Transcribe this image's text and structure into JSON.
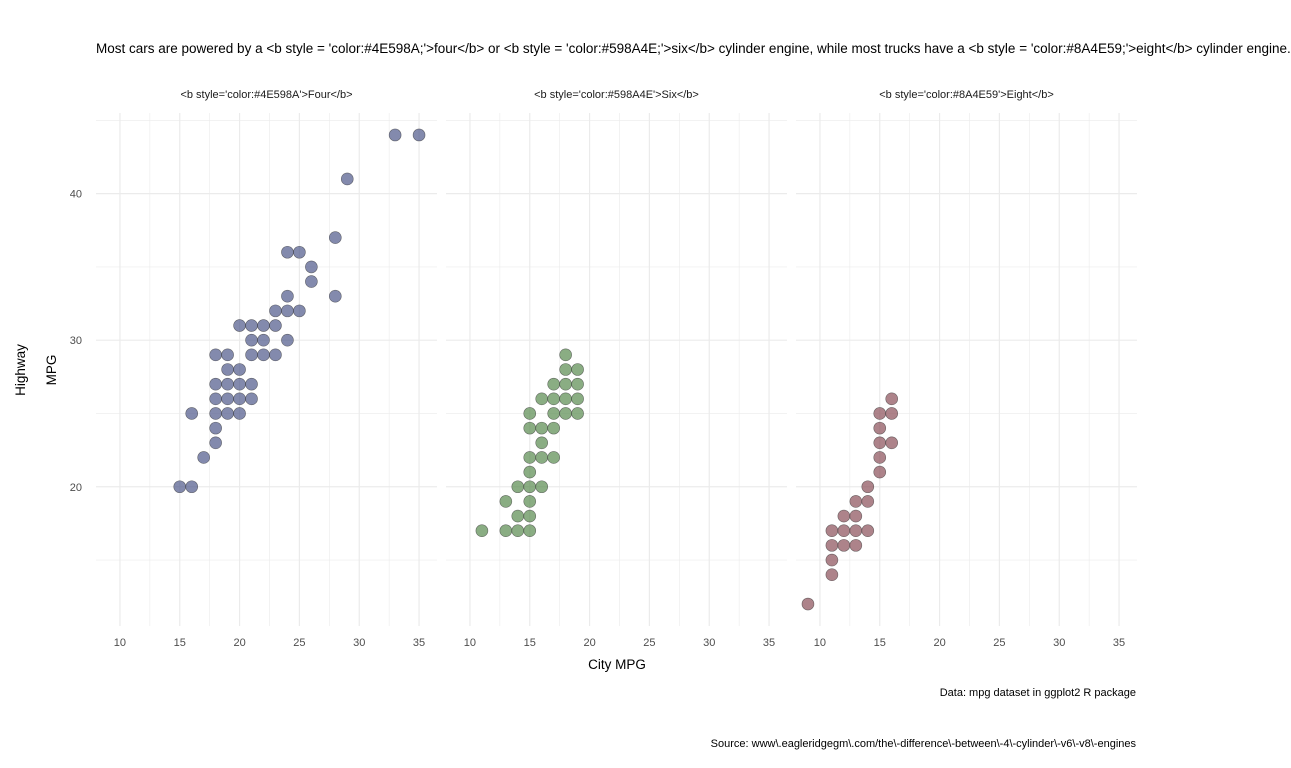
{
  "title": "Most cars are powered by a <b style = 'color:#4E598A;'>four</b> or <b style = 'color:#598A4E;'>six</b> cylinder engine, while most trucks have a <b style = 'color:#8A4E59;'>eight</b> cylinder engine.",
  "caption": {
    "data_note": "Data: mpg dataset in ggplot2 R package",
    "source": "Source: www\\.eagleridgegm\\.com/the\\-difference\\-between\\-4\\-cylinder\\-v6\\-v8\\-engines"
  },
  "colors": {
    "four": "#4E598A",
    "six": "#598A4E",
    "eight": "#8A4E59",
    "grid": "#ebebeb"
  },
  "chart_data": {
    "type": "scatter",
    "xlabel": "City MPG",
    "ylabel_lines": [
      "Highway",
      "MPG"
    ],
    "xlim": [
      8,
      36.5
    ],
    "ylim": [
      10.5,
      45.5
    ],
    "xticks": [
      10,
      15,
      20,
      25,
      30,
      35
    ],
    "yticks": [
      20,
      30,
      40
    ],
    "grid": true,
    "facets": [
      {
        "strip": "<b style='color:#4E598A'>Four</b>",
        "color": "#4E598A",
        "points": [
          [
            15,
            20
          ],
          [
            16,
            20
          ],
          [
            16,
            25
          ],
          [
            17,
            22
          ],
          [
            18,
            23
          ],
          [
            18,
            24
          ],
          [
            18,
            25
          ],
          [
            18,
            26
          ],
          [
            18,
            27
          ],
          [
            18,
            29
          ],
          [
            19,
            25
          ],
          [
            19,
            26
          ],
          [
            19,
            27
          ],
          [
            19,
            28
          ],
          [
            19,
            29
          ],
          [
            20,
            25
          ],
          [
            20,
            26
          ],
          [
            20,
            27
          ],
          [
            20,
            28
          ],
          [
            20,
            31
          ],
          [
            21,
            26
          ],
          [
            21,
            27
          ],
          [
            21,
            29
          ],
          [
            21,
            30
          ],
          [
            21,
            31
          ],
          [
            22,
            29
          ],
          [
            22,
            30
          ],
          [
            22,
            31
          ],
          [
            23,
            29
          ],
          [
            23,
            31
          ],
          [
            23,
            32
          ],
          [
            24,
            30
          ],
          [
            24,
            32
          ],
          [
            24,
            33
          ],
          [
            24,
            36
          ],
          [
            25,
            32
          ],
          [
            25,
            36
          ],
          [
            26,
            34
          ],
          [
            26,
            35
          ],
          [
            28,
            33
          ],
          [
            28,
            37
          ],
          [
            29,
            41
          ],
          [
            33,
            44
          ],
          [
            35,
            44
          ]
        ]
      },
      {
        "strip": "<b style='color:#598A4E'>Six</b>",
        "color": "#598A4E",
        "points": [
          [
            11,
            17
          ],
          [
            13,
            17
          ],
          [
            13,
            19
          ],
          [
            14,
            17
          ],
          [
            14,
            18
          ],
          [
            14,
            20
          ],
          [
            15,
            17
          ],
          [
            15,
            18
          ],
          [
            15,
            19
          ],
          [
            15,
            20
          ],
          [
            15,
            21
          ],
          [
            15,
            22
          ],
          [
            15,
            24
          ],
          [
            15,
            25
          ],
          [
            16,
            20
          ],
          [
            16,
            22
          ],
          [
            16,
            23
          ],
          [
            16,
            24
          ],
          [
            16,
            26
          ],
          [
            17,
            22
          ],
          [
            17,
            24
          ],
          [
            17,
            25
          ],
          [
            17,
            26
          ],
          [
            17,
            27
          ],
          [
            18,
            25
          ],
          [
            18,
            26
          ],
          [
            18,
            27
          ],
          [
            18,
            28
          ],
          [
            18,
            29
          ],
          [
            19,
            25
          ],
          [
            19,
            26
          ],
          [
            19,
            27
          ],
          [
            19,
            28
          ]
        ]
      },
      {
        "strip": "<b style='color:#8A4E59'>Eight</b>",
        "color": "#8A4E59",
        "points": [
          [
            9,
            12
          ],
          [
            11,
            14
          ],
          [
            11,
            15
          ],
          [
            11,
            16
          ],
          [
            11,
            17
          ],
          [
            12,
            16
          ],
          [
            12,
            17
          ],
          [
            12,
            18
          ],
          [
            13,
            16
          ],
          [
            13,
            17
          ],
          [
            13,
            18
          ],
          [
            13,
            19
          ],
          [
            14,
            17
          ],
          [
            14,
            19
          ],
          [
            14,
            20
          ],
          [
            15,
            21
          ],
          [
            15,
            22
          ],
          [
            15,
            23
          ],
          [
            15,
            24
          ],
          [
            15,
            25
          ],
          [
            16,
            23
          ],
          [
            16,
            25
          ],
          [
            16,
            26
          ]
        ]
      }
    ]
  }
}
